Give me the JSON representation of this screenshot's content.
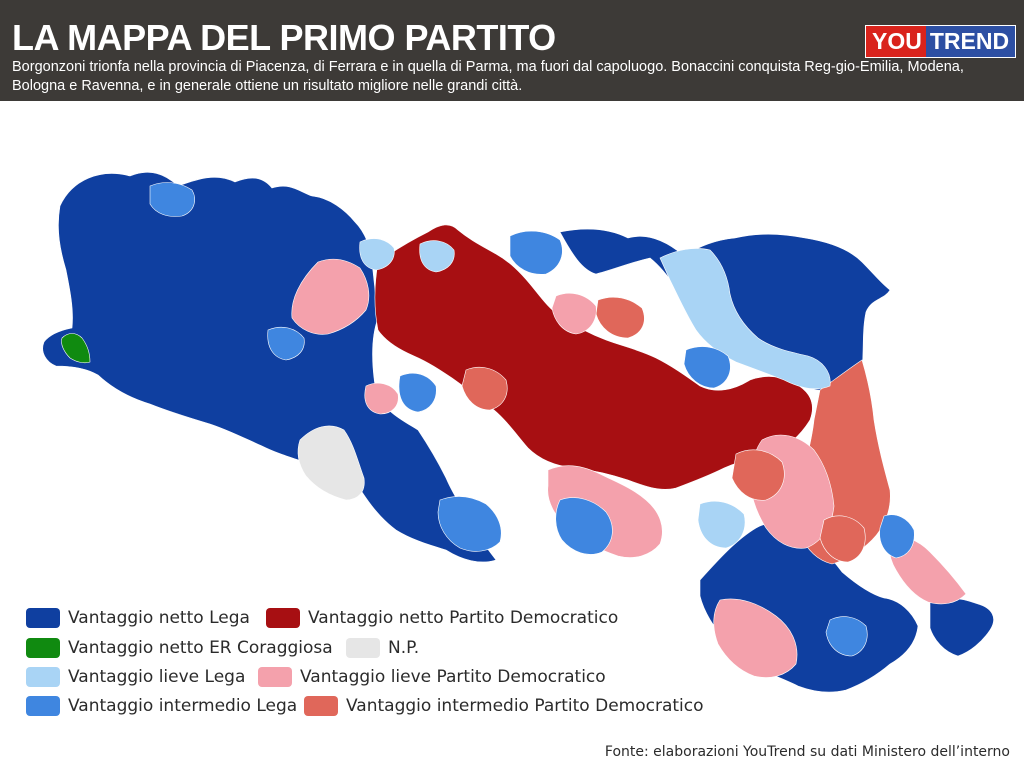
{
  "header": {
    "title": "LA MAPPA DEL PRIMO PARTITO",
    "subtitle": "Borgonzoni trionfa nella provincia di Piacenza, di Ferrara e in quella di Parma, ma fuori dal capoluogo. Bonaccini conquista Reg-gio-Emilia, Modena, Bologna e Ravenna, e in generale ottiene un risultato migliore nelle grandi città.",
    "logo_left": "YOU",
    "logo_right": "TREND"
  },
  "colors": {
    "header_bg": "#3d3a37",
    "lega_netto": "#0f3fa0",
    "lega_intermedio": "#3f86e0",
    "lega_lieve": "#a9d4f5",
    "pd_netto": "#a70f12",
    "pd_intermedio": "#e0675a",
    "pd_lieve": "#f4a1ac",
    "er_coraggiosa_netto": "#108a10",
    "np": "#e6e6e6"
  },
  "legend": {
    "items": [
      {
        "label": "Vantaggio netto Lega",
        "color": "#0f3fa0"
      },
      {
        "label": "Vantaggio netto Partito Democratico",
        "color": "#a70f12"
      },
      {
        "label": "Vantaggio netto ER Coraggiosa",
        "color": "#108a10"
      },
      {
        "label": "N.P.",
        "color": "#e6e6e6"
      },
      {
        "label": "Vantaggio lieve Lega",
        "color": "#a9d4f5"
      },
      {
        "label": "Vantaggio lieve Partito Democratico",
        "color": "#f4a1ac"
      },
      {
        "label": "Vantaggio intermedio Lega",
        "color": "#3f86e0"
      },
      {
        "label": "Vantaggio intermedio Partito Democratico",
        "color": "#e0675a"
      }
    ]
  },
  "footer": {
    "source": "Fonte: elaborazioni YouTrend su dati Ministero dell’interno"
  }
}
